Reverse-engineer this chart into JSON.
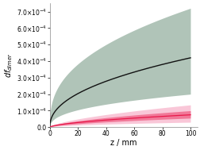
{
  "title": "",
  "xlabel": "z / mm",
  "ylabel": "dfₑⁱdimer",
  "xlim": [
    0,
    105
  ],
  "ylim": [
    0,
    0.00075
  ],
  "yticks": [
    0.0,
    0.0001,
    0.0002,
    0.0003,
    0.0004,
    0.0005,
    0.0006,
    0.0007
  ],
  "xticks": [
    0,
    20,
    40,
    60,
    80,
    100
  ],
  "gray_band_color": "#b0c4b8",
  "pink_band_color": "#f06090",
  "pink_band_alpha": 0.55,
  "gray_band_alpha": 1.0,
  "black_line_color": "#111111",
  "pink_line_color": "#e8184a",
  "background_color": "#ffffff",
  "figsize": [
    2.53,
    1.89
  ],
  "dpi": 100
}
